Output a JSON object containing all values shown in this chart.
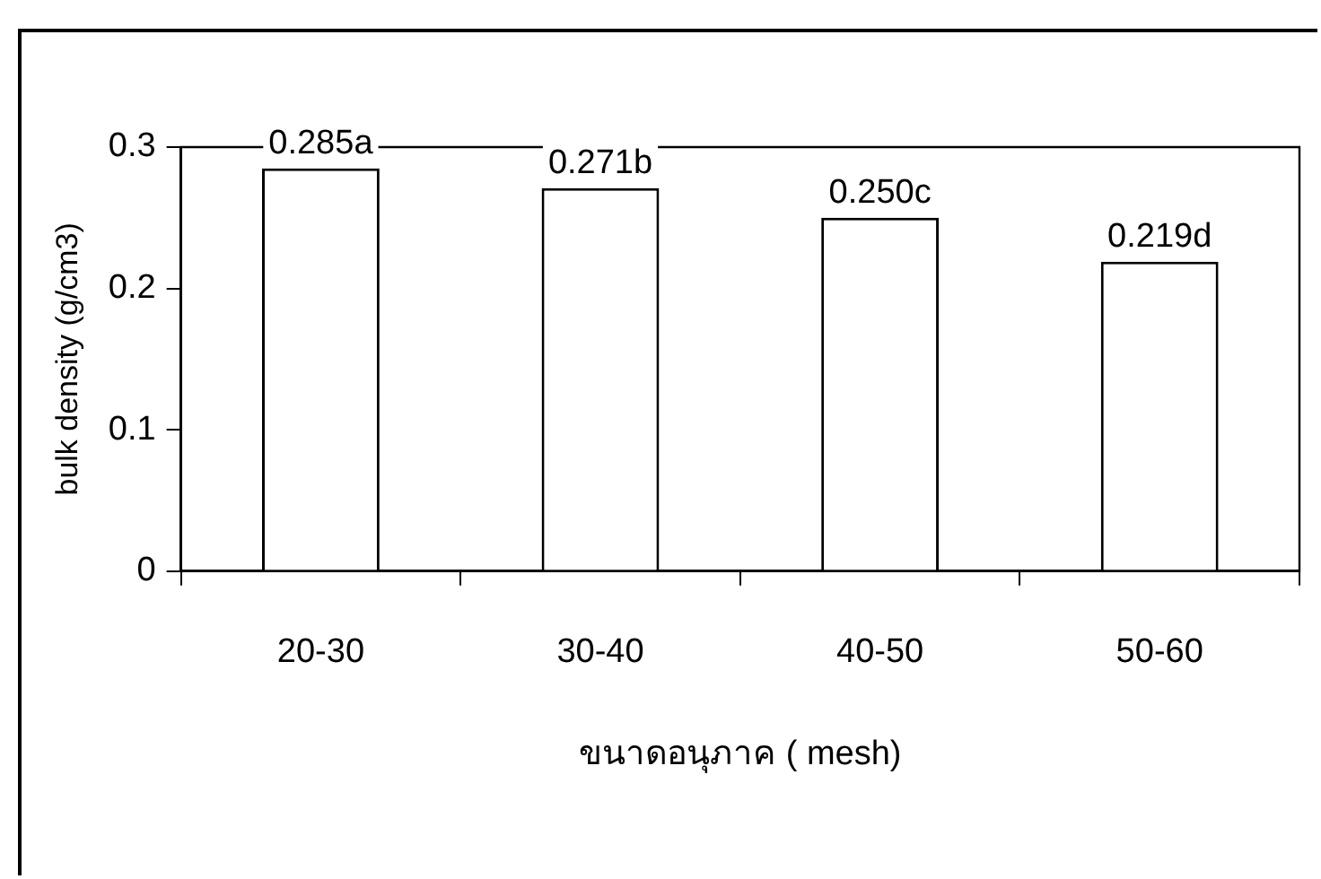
{
  "chart_data": {
    "type": "bar",
    "xlabel": "ขนาดอนุภาค ( mesh)",
    "ylabel": "bulk density (g/cm3)",
    "categories": [
      "20-30",
      "30-40",
      "40-50",
      "50-60"
    ],
    "values": [
      0.285,
      0.271,
      0.25,
      0.219
    ],
    "value_labels": [
      "0.285a",
      "0.271b",
      "0.250c",
      "0.219d"
    ],
    "color": "#ffffff",
    "ylim": [
      0,
      0.3
    ],
    "yticks": [
      0,
      0.1,
      0.2,
      0.3
    ],
    "grid": false
  }
}
